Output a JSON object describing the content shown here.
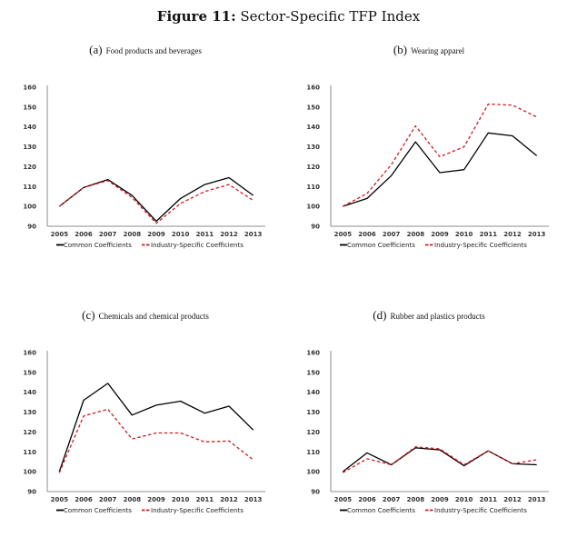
{
  "figure": {
    "label": "Figure 11:",
    "title": "Sector-Specific TFP Index"
  },
  "colors": {
    "common": "#000000",
    "industry": "#d7191c",
    "axis": "#8c8c8c"
  },
  "legend": {
    "common": "Common Coefficients",
    "industry": "Industry-Specific Coefficients"
  },
  "chart_data": [
    {
      "id": "a",
      "type": "line",
      "letter": "(a)",
      "title": "Food products and beverages",
      "xlabel": "",
      "ylabel": "",
      "categories": [
        "2005",
        "2006",
        "2007",
        "2008",
        "2009",
        "2010",
        "2011",
        "2012",
        "2013"
      ],
      "yticks": [
        90,
        100,
        110,
        120,
        130,
        140,
        150,
        160
      ],
      "ylim": [
        90,
        160
      ],
      "grid": false,
      "legend_position": "bottom",
      "series": [
        {
          "name": "Common Coefficients",
          "style": "solid",
          "values": [
            100,
            109.5,
            113.5,
            105.5,
            92.5,
            104,
            111,
            114.5,
            105.5
          ]
        },
        {
          "name": "Industry-Specific Coefficients",
          "style": "dashed",
          "values": [
            100,
            109.5,
            113,
            104.5,
            91.5,
            101.5,
            107.5,
            111,
            103
          ]
        }
      ]
    },
    {
      "id": "b",
      "type": "line",
      "letter": "(b)",
      "title": "Wearing apparel",
      "xlabel": "",
      "ylabel": "",
      "categories": [
        "2005",
        "2006",
        "2007",
        "2008",
        "2009",
        "2010",
        "2011",
        "2012",
        "2013"
      ],
      "yticks": [
        90,
        100,
        110,
        120,
        130,
        140,
        150,
        160
      ],
      "ylim": [
        90,
        160
      ],
      "grid": false,
      "legend_position": "bottom",
      "series": [
        {
          "name": "Common Coefficients",
          "style": "solid",
          "values": [
            100,
            104,
            115.5,
            132.5,
            117,
            118.5,
            137,
            135.5,
            125.5
          ]
        },
        {
          "name": "Industry-Specific Coefficients",
          "style": "dashed",
          "values": [
            100,
            106.5,
            121,
            140.5,
            125,
            130,
            151.5,
            151,
            145
          ]
        }
      ]
    },
    {
      "id": "c",
      "type": "line",
      "letter": "(c)",
      "title": "Chemicals and chemical products",
      "xlabel": "",
      "ylabel": "",
      "categories": [
        "2005",
        "2006",
        "2007",
        "2008",
        "2009",
        "2010",
        "2011",
        "2012",
        "2013"
      ],
      "yticks": [
        90,
        100,
        110,
        120,
        130,
        140,
        150,
        160
      ],
      "ylim": [
        90,
        160
      ],
      "grid": false,
      "legend_position": "bottom",
      "series": [
        {
          "name": "Common Coefficients",
          "style": "solid",
          "values": [
            100,
            136,
            144.5,
            128.5,
            133.5,
            135.5,
            129.5,
            133,
            121
          ]
        },
        {
          "name": "Industry-Specific Coefficients",
          "style": "dashed",
          "values": [
            99.5,
            128,
            131.5,
            116.5,
            119.5,
            119.5,
            115,
            115.5,
            106
          ]
        }
      ]
    },
    {
      "id": "d",
      "type": "line",
      "letter": "(d)",
      "title": "Rubber and plastics products",
      "xlabel": "",
      "ylabel": "",
      "categories": [
        "2005",
        "2006",
        "2007",
        "2008",
        "2009",
        "2010",
        "2011",
        "2012",
        "2013"
      ],
      "yticks": [
        90,
        100,
        110,
        120,
        130,
        140,
        150,
        160
      ],
      "ylim": [
        90,
        160
      ],
      "grid": false,
      "legend_position": "bottom",
      "series": [
        {
          "name": "Common Coefficients",
          "style": "solid",
          "values": [
            100,
            109.5,
            103.5,
            112,
            111,
            103,
            110.5,
            104,
            103.5
          ]
        },
        {
          "name": "Industry-Specific Coefficients",
          "style": "dashed",
          "values": [
            99.5,
            106.5,
            103.5,
            112.5,
            111.5,
            103.5,
            110.5,
            104,
            106
          ]
        }
      ]
    }
  ]
}
